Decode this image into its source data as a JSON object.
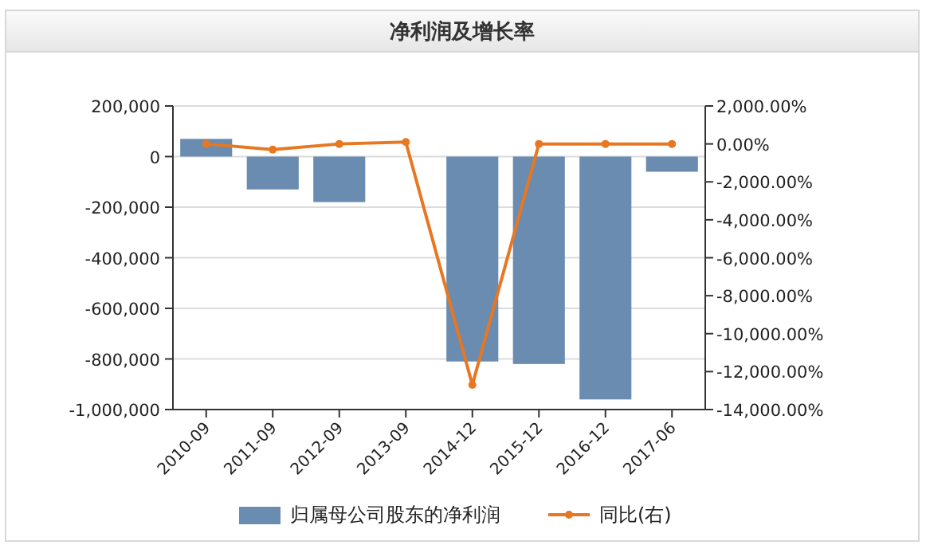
{
  "chart_data": {
    "type": "bar",
    "title": "净利润及增长率",
    "categories": [
      "2010-09",
      "2011-09",
      "2012-09",
      "2013-09",
      "2014-12",
      "2015-12",
      "2016-12",
      "2017-06"
    ],
    "series": [
      {
        "name": "归属母公司股东的净利润",
        "color": "#6a8cb0",
        "values": [
          70000,
          -130000,
          -180000,
          null,
          -810000,
          -820000,
          -960000,
          -60000
        ]
      },
      {
        "name": "同比(右)",
        "type": "line",
        "axis": "y2",
        "color": "#e87722",
        "marker": "circle",
        "values": [
          0,
          -300,
          0,
          100,
          -12700,
          0,
          0,
          0
        ]
      }
    ],
    "ylim": [
      -1000000,
      200000
    ],
    "yticks": [
      {
        "value": -1000000,
        "label": "-1,000,000"
      },
      {
        "value": -800000,
        "label": "-800,000"
      },
      {
        "value": -600000,
        "label": "-600,000"
      },
      {
        "value": -400000,
        "label": "-400,000"
      },
      {
        "value": -200000,
        "label": "-200,000"
      },
      0,
      {
        "value": 200000,
        "label": "200,000"
      }
    ],
    "y2lim": [
      -14000,
      2000
    ],
    "y2ticks": [
      {
        "value": -14000,
        "label": "-14,000.00%"
      },
      {
        "value": -12000,
        "label": "-12,000.00%"
      },
      {
        "value": -10000,
        "label": "-10,000.00%"
      },
      {
        "value": -8000,
        "label": "-8,000.00%"
      },
      {
        "value": -6000,
        "label": "-6,000.00%"
      },
      {
        "value": -4000,
        "label": "-4,000.00%"
      },
      {
        "value": -2000,
        "label": "-2,000.00%"
      },
      {
        "value": 0,
        "label": "0.00%"
      },
      {
        "value": 2000,
        "label": "2,000.00%"
      }
    ],
    "grid": "y",
    "legend": "bottom"
  }
}
